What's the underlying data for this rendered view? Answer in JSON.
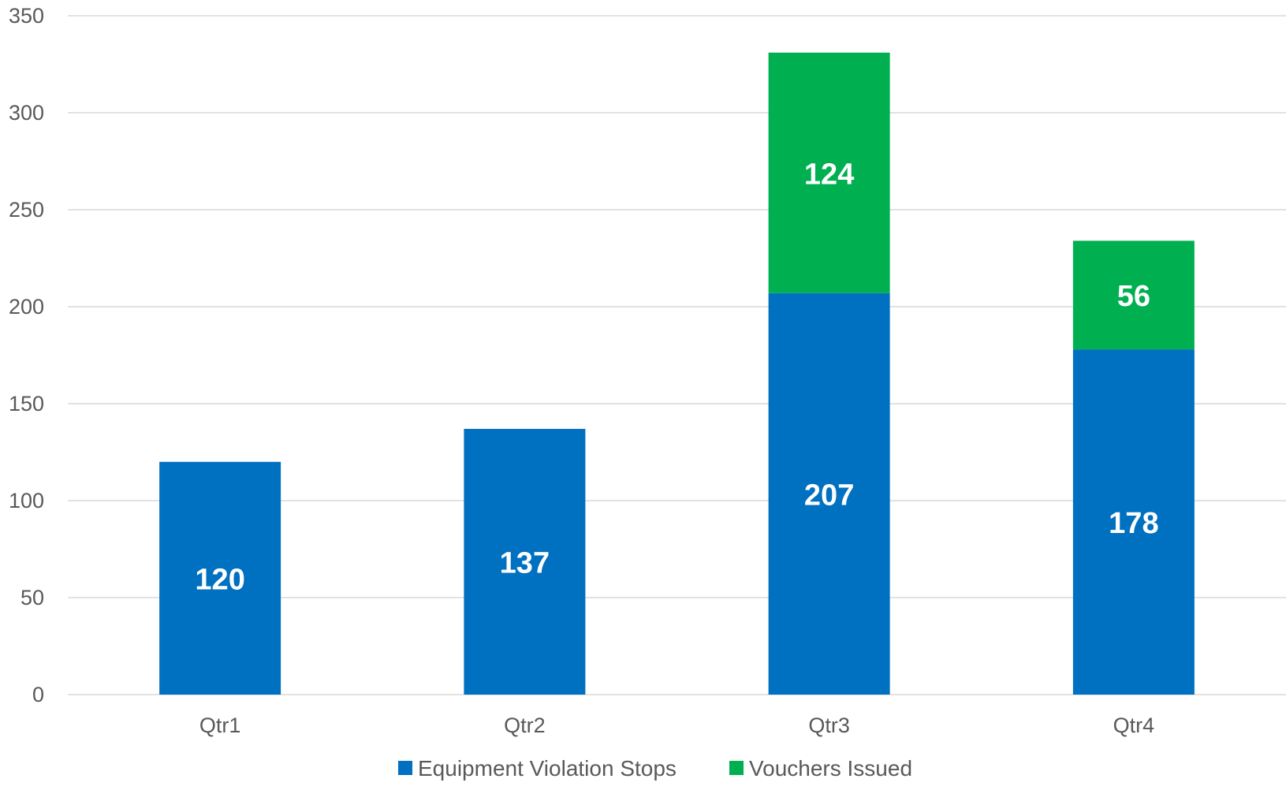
{
  "chart_data": {
    "type": "bar",
    "stacked": true,
    "categories": [
      "Qtr1",
      "Qtr2",
      "Qtr3",
      "Qtr4"
    ],
    "series": [
      {
        "name": "Equipment Violation Stops",
        "color": "#0070C0",
        "values": [
          120,
          137,
          207,
          178
        ]
      },
      {
        "name": "Vouchers Issued",
        "color": "#00B050",
        "values": [
          0,
          0,
          124,
          56
        ]
      }
    ],
    "data_labels": [
      [
        "120",
        "137",
        "207",
        "178"
      ],
      [
        "",
        "",
        "124",
        "56"
      ]
    ],
    "title": "",
    "xlabel": "",
    "ylabel": "",
    "ylim": [
      0,
      350
    ],
    "yticks": [
      0,
      50,
      100,
      150,
      200,
      250,
      300,
      350
    ],
    "grid": true,
    "legend_position": "bottom",
    "gridline_color": "#D9D9D9",
    "text_color": "#595959"
  }
}
